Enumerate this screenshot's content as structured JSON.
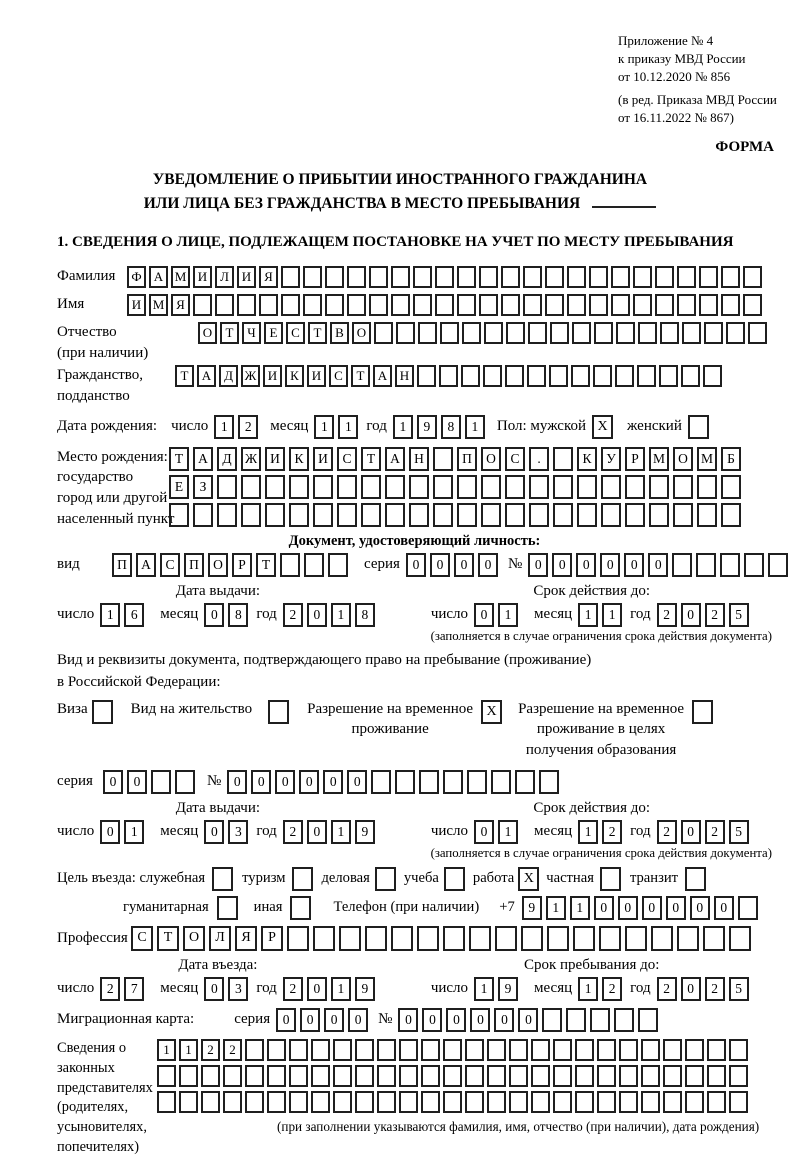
{
  "header": {
    "appendix_lines": [
      "Приложение № 4",
      "к приказу МВД России",
      "от 10.12.2020 № 856"
    ],
    "amendment_lines": [
      "(в ред. Приказа МВД России",
      "от 16.11.2022 № 867)"
    ],
    "form_label": "ФОРМА"
  },
  "title": {
    "line1": "УВЕДОМЛЕНИЕ О ПРИБЫТИИ ИНОСТРАННОГО ГРАЖДАНИНА",
    "line2": "ИЛИ ЛИЦА БЕЗ ГРАЖДАНСТВА В МЕСТО ПРЕБЫВАНИЯ"
  },
  "section1": {
    "heading": "1. СВЕДЕНИЯ О ЛИЦЕ, ПОДЛЕЖАЩЕМ ПОСТАНОВКЕ НА УЧЕТ ПО МЕСТУ ПРЕБЫВАНИЯ"
  },
  "labels": {
    "surname": "Фамилия",
    "name": "Имя",
    "patronymic": "Отчество",
    "patronymic_note": "(при наличии)",
    "citizenship1": "Гражданство,",
    "citizenship2": "подданство",
    "birth_date": "Дата рождения:",
    "day": "число",
    "month": "месяц",
    "year": "год",
    "sex_male": "Пол: мужской",
    "sex_female": "женский",
    "birthplace1": "Место рождения:",
    "birthplace2": "государство",
    "birthplace3": "город или другой",
    "birthplace4": "населенный пункт",
    "id_doc_heading": "Документ, удостоверяющий личность:",
    "doc_type": "вид",
    "series": "серия",
    "number": "№",
    "issue_date": "Дата выдачи:",
    "valid_until": "Срок действия до:",
    "validity_note": "(заполняется в случае ограничения срока действия документа)",
    "residence_doc1": "Вид и реквизиты документа, подтверждающего право на пребывание (проживание)",
    "residence_doc2": "в Российской Федерации:",
    "visa": "Виза",
    "residence_permit": "Вид на жительство",
    "temp_residence1": "Разрешение на временное",
    "temp_residence2": "проживание",
    "temp_residence_edu1": "Разрешение на временное",
    "temp_residence_edu2": "проживание в целях",
    "temp_residence_edu3": "получения образования",
    "purpose": "Цель въезда: служебная",
    "tourism": "туризм",
    "business": "деловая",
    "study": "учеба",
    "work": "работа",
    "private": "частная",
    "transit": "транзит",
    "humanitarian": "гуманитарная",
    "other": "иная",
    "phone": "Телефон (при наличии)",
    "phone_prefix": "+7",
    "profession": "Профессия",
    "entry_date": "Дата въезда:",
    "stay_until": "Срок пребывания до:",
    "migration_card": "Миграционная карта:",
    "representatives_lines": [
      "Сведения о",
      "законных",
      "представителях",
      "(родителях,",
      "усыновителях,",
      "попечителях)"
    ],
    "representatives_note": "(при заполнении указываются фамилия, имя, отчество (при наличии), дата рождения)"
  },
  "cells": {
    "surname": {
      "chars": "ФАМИЛИЯ",
      "count": 29
    },
    "name": {
      "chars": "ИМЯ",
      "count": 29
    },
    "patronymic": {
      "chars": "ОТЧЕСТВО",
      "count": 26
    },
    "citizenship": {
      "chars": "ТАДЖИКИСТАН",
      "count": 25
    },
    "birth_day": {
      "chars": "12",
      "count": 2
    },
    "birth_month": {
      "chars": "11",
      "count": 2
    },
    "birth_year": {
      "chars": "1981",
      "count": 4
    },
    "sex_male_cb": {
      "chars": "X",
      "count": 1
    },
    "sex_female_cb": {
      "chars": "",
      "count": 1
    },
    "birthplace_row1": {
      "chars": "ТАДЖИКИСТАН ПОС. КУРМОМБ",
      "count": 24
    },
    "birthplace_row2": {
      "chars": "ЕЗ",
      "count": 24
    },
    "birthplace_row3": {
      "chars": "",
      "count": 24
    },
    "id_doc_type": {
      "chars": "ПАСПОРТ",
      "count": 10
    },
    "id_doc_series": {
      "chars": "0000",
      "count": 4
    },
    "id_doc_number": {
      "chars": "000000",
      "count": 11
    },
    "id_issue_day": {
      "chars": "16",
      "count": 2
    },
    "id_issue_month": {
      "chars": "08",
      "count": 2
    },
    "id_issue_year": {
      "chars": "2018",
      "count": 4
    },
    "id_valid_day": {
      "chars": "01",
      "count": 2
    },
    "id_valid_month": {
      "chars": "11",
      "count": 2
    },
    "id_valid_year": {
      "chars": "2025",
      "count": 4
    },
    "visa_cb": {
      "chars": "",
      "count": 1
    },
    "residence_permit_cb": {
      "chars": "",
      "count": 1
    },
    "temp_residence_cb": {
      "chars": "X",
      "count": 1
    },
    "temp_residence_edu_cb": {
      "chars": "",
      "count": 1
    },
    "res_series": {
      "chars": "00",
      "count": 4
    },
    "res_number": {
      "chars": "000000",
      "count": 14
    },
    "res_issue_day": {
      "chars": "01",
      "count": 2
    },
    "res_issue_month": {
      "chars": "03",
      "count": 2
    },
    "res_issue_year": {
      "chars": "2019",
      "count": 4
    },
    "res_valid_day": {
      "chars": "01",
      "count": 2
    },
    "res_valid_month": {
      "chars": "12",
      "count": 2
    },
    "res_valid_year": {
      "chars": "2025",
      "count": 4
    },
    "purpose_official_cb": {
      "chars": "",
      "count": 1
    },
    "tourism_cb": {
      "chars": "",
      "count": 1
    },
    "business_cb": {
      "chars": "",
      "count": 1
    },
    "study_cb": {
      "chars": "",
      "count": 1
    },
    "work_cb": {
      "chars": "X",
      "count": 1
    },
    "private_cb": {
      "chars": "",
      "count": 1
    },
    "transit_cb": {
      "chars": "",
      "count": 1
    },
    "humanitarian_cb": {
      "chars": "",
      "count": 1
    },
    "other_cb": {
      "chars": "",
      "count": 1
    },
    "phone_digits": {
      "chars": "911000000",
      "count": 10
    },
    "profession": {
      "chars": "СТОЛЯР",
      "count": 24
    },
    "entry_day": {
      "chars": "27",
      "count": 2
    },
    "entry_month": {
      "chars": "03",
      "count": 2
    },
    "entry_year": {
      "chars": "2019",
      "count": 4
    },
    "stay_day": {
      "chars": "19",
      "count": 2
    },
    "stay_month": {
      "chars": "12",
      "count": 2
    },
    "stay_year": {
      "chars": "2025",
      "count": 4
    },
    "mig_series": {
      "chars": "0000",
      "count": 4
    },
    "mig_number": {
      "chars": "000000",
      "count": 11
    },
    "rep_row1": {
      "chars": "1122",
      "count": 27
    },
    "rep_row2": {
      "chars": "",
      "count": 27
    },
    "rep_row3": {
      "chars": "",
      "count": 27
    }
  }
}
